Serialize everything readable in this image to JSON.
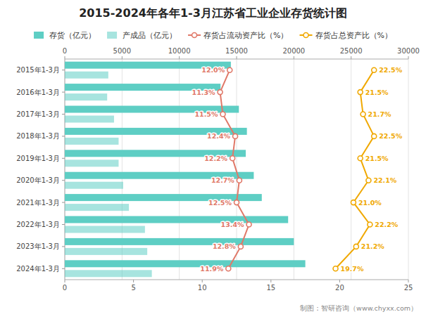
{
  "chart_data": {
    "type": "bar",
    "orientation": "horizontal",
    "title": "2015-2024年各年1-3月江苏省工业企业存货统计图",
    "categories": [
      "2015年1-3月",
      "2016年1-3月",
      "2017年1-3月",
      "2018年1-3月",
      "2019年1-3月",
      "2020年1-3月",
      "2021年1-3月",
      "2022年1-3月",
      "2023年1-3月",
      "2024年1-3月"
    ],
    "series": [
      {
        "name": "存货（亿元）",
        "type": "bar",
        "color": "#5ecec4",
        "values": [
          14500,
          13600,
          15200,
          15900,
          15800,
          16500,
          17200,
          19500,
          20000,
          21000
        ]
      },
      {
        "name": "产成品（亿元）",
        "type": "bar",
        "color": "#5ecec4",
        "values": [
          3800,
          3700,
          4300,
          4700,
          4700,
          5100,
          5600,
          7000,
          7200,
          7600
        ]
      },
      {
        "name": "存货占流动资产比（%）",
        "type": "line",
        "axis": "y2",
        "color": "#e07868",
        "marker": "circle",
        "data_labels": true,
        "values": [
          12.0,
          11.3,
          11.5,
          12.4,
          12.2,
          12.7,
          12.5,
          13.4,
          12.8,
          11.9
        ],
        "value_labels": [
          "12.0%",
          "11.3%",
          "11.5%",
          "12.4%",
          "12.2%",
          "12.7%",
          "12.5%",
          "13.4%",
          "12.8%",
          "11.9%"
        ]
      },
      {
        "name": "存货占总资产比（%）",
        "type": "line",
        "axis": "y2",
        "color": "#f0a800",
        "marker": "circle",
        "data_labels": true,
        "values": [
          22.5,
          21.5,
          21.7,
          22.5,
          21.5,
          22.1,
          21.0,
          22.2,
          21.2,
          19.7
        ],
        "value_labels": [
          "22.5%",
          "21.5%",
          "21.7%",
          "22.5%",
          "21.5%",
          "22.1%",
          "21.0%",
          "22.2%",
          "21.2%",
          "19.7%"
        ]
      }
    ],
    "xlim": [
      0,
      30000
    ],
    "xticks": [
      0,
      5000,
      10000,
      15000,
      20000,
      25000,
      30000
    ],
    "y2lim": [
      0,
      25
    ],
    "y2ticks": [
      0,
      5,
      10,
      15,
      20,
      25
    ],
    "grid": true,
    "legend": "top",
    "annotations": [
      "制图：智研咨询（www.chyxx.com）"
    ]
  }
}
